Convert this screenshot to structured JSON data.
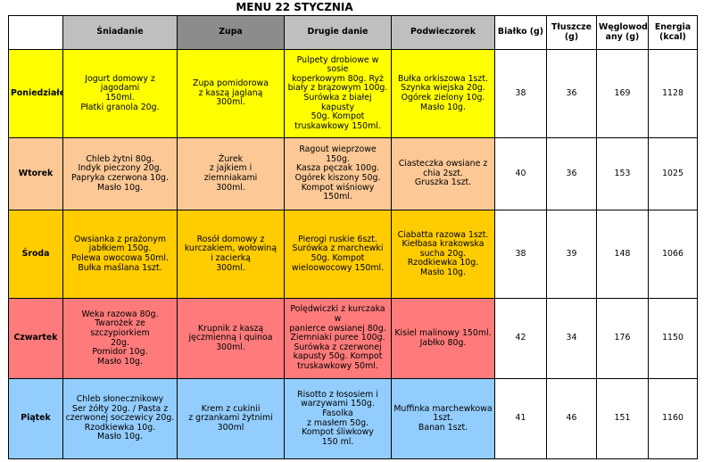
{
  "title": "MENU 22 STYCZNIA",
  "columns": [
    "Śniadanie",
    "Zupa",
    "Drugie danie",
    "Podwieczorek",
    "Białko (g)",
    "Tłuszcze\n(g)",
    "Węglowod\nany (g)",
    "Energia\n(kcal)"
  ],
  "colors": {
    "mon": "#ffff00",
    "tue": "#fbc896",
    "wed": "#ffcc00",
    "thu": "#ff7b7b",
    "fri": "#93cdfd"
  },
  "rows": [
    {
      "day": "Poniedziałek",
      "breakfast": "Jogurt domowy z jagodami\n150ml.\nPłatki granola 20g.",
      "soup": "Zupa pomidorowa\nz kaszą jaglaną\n300ml.",
      "main": "Pulpety drobiowe w sosie\nkoperkowym 80g. Ryż\nbiały z brązowym 100g.\nSurówka z białej kapusty\n50g. Kompot\ntruskawkowy 150ml.",
      "snack": "Bułka orkiszowa 1szt.\nSzynka wiejska 20g.\nOgórek zielony 10g.\nMasło 10g.",
      "protein": "38",
      "fat": "36",
      "carbs": "169",
      "energy": "1128"
    },
    {
      "day": "Wtorek",
      "breakfast": "Chleb żytni 80g.\nIndyk pieczony 20g.\nPapryka czerwona 10g.\nMasło 10g.",
      "soup": "Żurek\nz jajkiem i\nziemniakami\n300ml.",
      "main": "Ragout wieprzowe 150g.\nKasza pęczak 100g.\nOgórek kiszony 50g.\nKompot wiśniowy\n150ml.",
      "snack": "Ciasteczka owsiane z\nchia 2szt.\nGruszka 1szt.",
      "protein": "40",
      "fat": "36",
      "carbs": "153",
      "energy": "1025"
    },
    {
      "day": "Środa",
      "breakfast": "Owsianka z prażonym\njabłkiem 150g.\nPolewa owocowa 50ml.\nBułka maślana 1szt.",
      "soup": "Rosół domowy z\nkurczakiem, wołowiną\ni zacierką\n300ml.",
      "main": "Pierogi ruskie 6szt.\nSurówka z marchewki\n50g. Kompot\nwieloowocowy 150ml.",
      "snack": "Ciabatta razowa 1szt.\nKiełbasa krakowska\nsucha 20g.\nRzodkiewka 10g.\nMasło 10g.",
      "protein": "38",
      "fat": "39",
      "carbs": "148",
      "energy": "1066"
    },
    {
      "day": "Czwartek",
      "breakfast": "Weka razowa 80g.\nTwarożek ze szczypiorkiem\n20g.\nPomidor 10g.\nMasło 10g.",
      "soup": "Krupnik z kaszą\njęczmienną i quinoa\n300ml.",
      "main": "Polędwiczki z kurczaka w\npanierce owsianej 80g.\nZiemniaki puree 100g.\nSurówka z czerwonej\nkapusty 50g. Kompot\ntruskawkowy 50ml.",
      "snack": "Kisiel malinowy 150ml.\nJabłko 80g.",
      "protein": "42",
      "fat": "34",
      "carbs": "176",
      "energy": "1150"
    },
    {
      "day": "Piątek",
      "breakfast": "Chleb słonecznikowy\nSer żółty 20g. / Pasta z\nczerwonej soczewicy 20g.\nRzodkiewka 10g.\nMasło 10g.",
      "soup": "Krem z cukinii\nz grzankami żytnimi\n300ml",
      "main": "Risotto z łososiem i\nwarzywami 150g. Fasolka\nz masłem 50g.\nKompot śliwkowy\n150 ml.",
      "snack": "Muffinka marchewkowa\n1szt.\nBanan 1szt.",
      "protein": "41",
      "fat": "46",
      "carbs": "151",
      "energy": "1160"
    }
  ]
}
